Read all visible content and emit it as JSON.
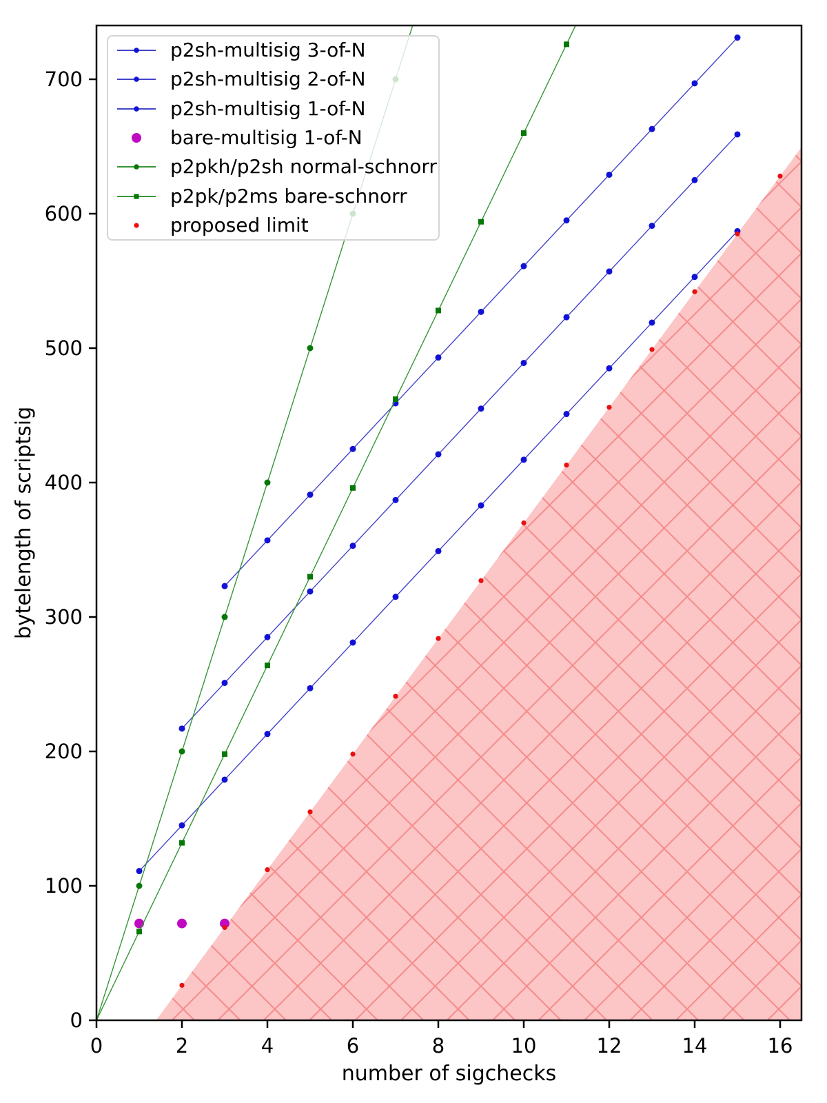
{
  "chart_data": {
    "type": "line",
    "title": "",
    "xlabel": "number of sigchecks",
    "ylabel": "bytelength of scriptsig",
    "xlim": [
      0,
      16.5
    ],
    "ylim": [
      0,
      740
    ],
    "x_ticks": [
      0,
      2,
      4,
      6,
      8,
      10,
      12,
      14,
      16
    ],
    "y_ticks": [
      0,
      100,
      200,
      300,
      400,
      500,
      600,
      700
    ],
    "grid": false,
    "legend_position": "upper-left",
    "series": [
      {
        "name": "p2sh-multisig 3-of-N",
        "marker": "circle",
        "marker_size": 4.5,
        "marker_color": "#1212d6",
        "line_color": "#4444ca",
        "line_width": 1.4,
        "x": [
          3,
          4,
          5,
          6,
          7,
          8,
          9,
          10,
          11,
          12,
          13,
          14,
          15
        ],
        "y": [
          323,
          357,
          391,
          425,
          459,
          493,
          527,
          561,
          595,
          629,
          663,
          697,
          731
        ]
      },
      {
        "name": "p2sh-multisig 2-of-N",
        "marker": "circle",
        "marker_size": 4.5,
        "marker_color": "#1212d6",
        "line_color": "#4444ca",
        "line_width": 1.4,
        "x": [
          2,
          3,
          4,
          5,
          6,
          7,
          8,
          9,
          10,
          11,
          12,
          13,
          14,
          15
        ],
        "y": [
          217,
          251,
          285,
          319,
          353,
          387,
          421,
          455,
          489,
          523,
          557,
          591,
          625,
          659
        ]
      },
      {
        "name": "p2sh-multisig 1-of-N",
        "marker": "circle",
        "marker_size": 4.5,
        "marker_color": "#1212d6",
        "line_color": "#4444ca",
        "line_width": 1.4,
        "x": [
          1,
          2,
          3,
          4,
          5,
          6,
          7,
          8,
          9,
          10,
          11,
          12,
          13,
          14,
          15
        ],
        "y": [
          111,
          145,
          179,
          213,
          247,
          281,
          315,
          349,
          383,
          417,
          451,
          485,
          519,
          553,
          587
        ]
      },
      {
        "name": "bare-multisig 1-of-N",
        "marker": "circle",
        "marker_size": 7,
        "marker_color": "#c009c0",
        "line_color": "none",
        "line_width": 0,
        "x": [
          1,
          2,
          3
        ],
        "y": [
          72,
          72,
          72
        ]
      },
      {
        "name": "p2pkh/p2sh normal-schnorr",
        "marker": "circle",
        "marker_size": 4.5,
        "marker_color": "#077807",
        "line_color": "#379637",
        "line_width": 1.4,
        "x": [
          1,
          2,
          3,
          4,
          5,
          6,
          7
        ],
        "y": [
          100,
          200,
          300,
          400,
          500,
          600,
          700
        ],
        "line": [
          [
            0,
            0
          ],
          [
            7.6,
            760
          ]
        ]
      },
      {
        "name": "p2pk/p2ms bare-schnorr",
        "marker": "square",
        "marker_size": 8,
        "marker_color": "#077807",
        "line_color": "#379637",
        "line_width": 1.4,
        "x": [
          1,
          2,
          3,
          4,
          5,
          6,
          7,
          8,
          9,
          10,
          11
        ],
        "y": [
          66,
          132,
          198,
          264,
          330,
          396,
          462,
          528,
          594,
          660,
          726
        ],
        "line": [
          [
            0,
            0
          ],
          [
            11.6,
            765.6
          ]
        ]
      },
      {
        "name": "proposed limit",
        "marker": "circle",
        "marker_size": 3.6,
        "marker_color": "#ea1010",
        "line_color": "none",
        "line_width": 0,
        "x": [
          2,
          3,
          4,
          5,
          6,
          7,
          8,
          9,
          10,
          11,
          12,
          13,
          14,
          15,
          16
        ],
        "y": [
          26,
          69,
          112,
          155,
          198,
          241,
          284,
          327,
          370,
          413,
          456,
          499,
          542,
          585,
          628
        ]
      }
    ],
    "region": {
      "polygon": [
        [
          1.3953,
          0
        ],
        [
          16.5,
          649.5
        ],
        [
          16.5,
          0
        ]
      ],
      "fill": "#fcc6c6",
      "hatch": "x",
      "hatch_color": "#f48d8d"
    },
    "spine_color": "#000000",
    "background": "#ffffff"
  }
}
